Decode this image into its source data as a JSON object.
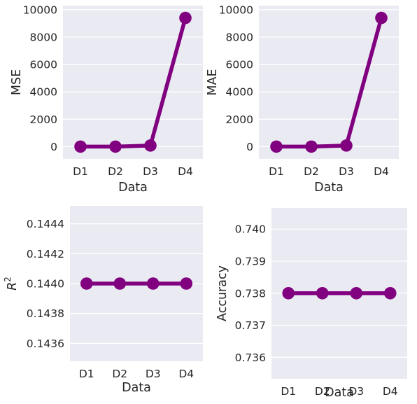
{
  "colors": {
    "series": "#800080",
    "axes_background": "#EAEAF2",
    "grid": "#FFFFFF",
    "text": "#262626"
  },
  "chart_data": [
    {
      "type": "line",
      "title": "",
      "xlabel": "Data",
      "ylabel": "MSE",
      "ylabel_math": false,
      "categories": [
        "D1",
        "D2",
        "D3",
        "D4"
      ],
      "series": [
        {
          "values": [
            0,
            0,
            80,
            9400
          ]
        }
      ],
      "ylim": [
        -900,
        10300
      ],
      "yticks": [
        0,
        2000,
        4000,
        6000,
        8000,
        10000
      ],
      "ytick_labels": [
        "0",
        "2000",
        "4000",
        "6000",
        "8000",
        "10000"
      ],
      "grid": true
    },
    {
      "type": "line",
      "title": "",
      "xlabel": "Data",
      "ylabel": "MAE",
      "ylabel_math": false,
      "categories": [
        "D1",
        "D2",
        "D3",
        "D4"
      ],
      "series": [
        {
          "values": [
            0,
            0,
            80,
            9400
          ]
        }
      ],
      "ylim": [
        -900,
        10300
      ],
      "yticks": [
        0,
        2000,
        4000,
        6000,
        8000,
        10000
      ],
      "ytick_labels": [
        "0",
        "2000",
        "4000",
        "6000",
        "8000",
        "10000"
      ],
      "grid": true
    },
    {
      "type": "line",
      "title": "",
      "xlabel": "Data",
      "ylabel": "R",
      "ylabel_superscript": "2",
      "ylabel_math": true,
      "categories": [
        "D1",
        "D2",
        "D3",
        "D4"
      ],
      "series": [
        {
          "values": [
            0.144,
            0.144,
            0.144,
            0.144
          ]
        }
      ],
      "ylim": [
        0.14348,
        0.14452
      ],
      "yticks": [
        0.1436,
        0.1438,
        0.144,
        0.1442,
        0.1444
      ],
      "ytick_labels": [
        "0.1436",
        "0.1438",
        "0.1440",
        "0.1442",
        "0.1444"
      ],
      "grid": true
    },
    {
      "type": "line",
      "title": "",
      "xlabel": "Data",
      "ylabel": "Accuracy",
      "ylabel_math": false,
      "categories": [
        "D1",
        "D2",
        "D3",
        "D4"
      ],
      "series": [
        {
          "values": [
            0.738,
            0.738,
            0.738,
            0.738
          ]
        }
      ],
      "ylim": [
        0.73533,
        0.74066
      ],
      "yticks": [
        0.736,
        0.737,
        0.738,
        0.739,
        0.74
      ],
      "ytick_labels": [
        "0.736",
        "0.737",
        "0.738",
        "0.739",
        "0.740"
      ],
      "grid": true
    }
  ]
}
